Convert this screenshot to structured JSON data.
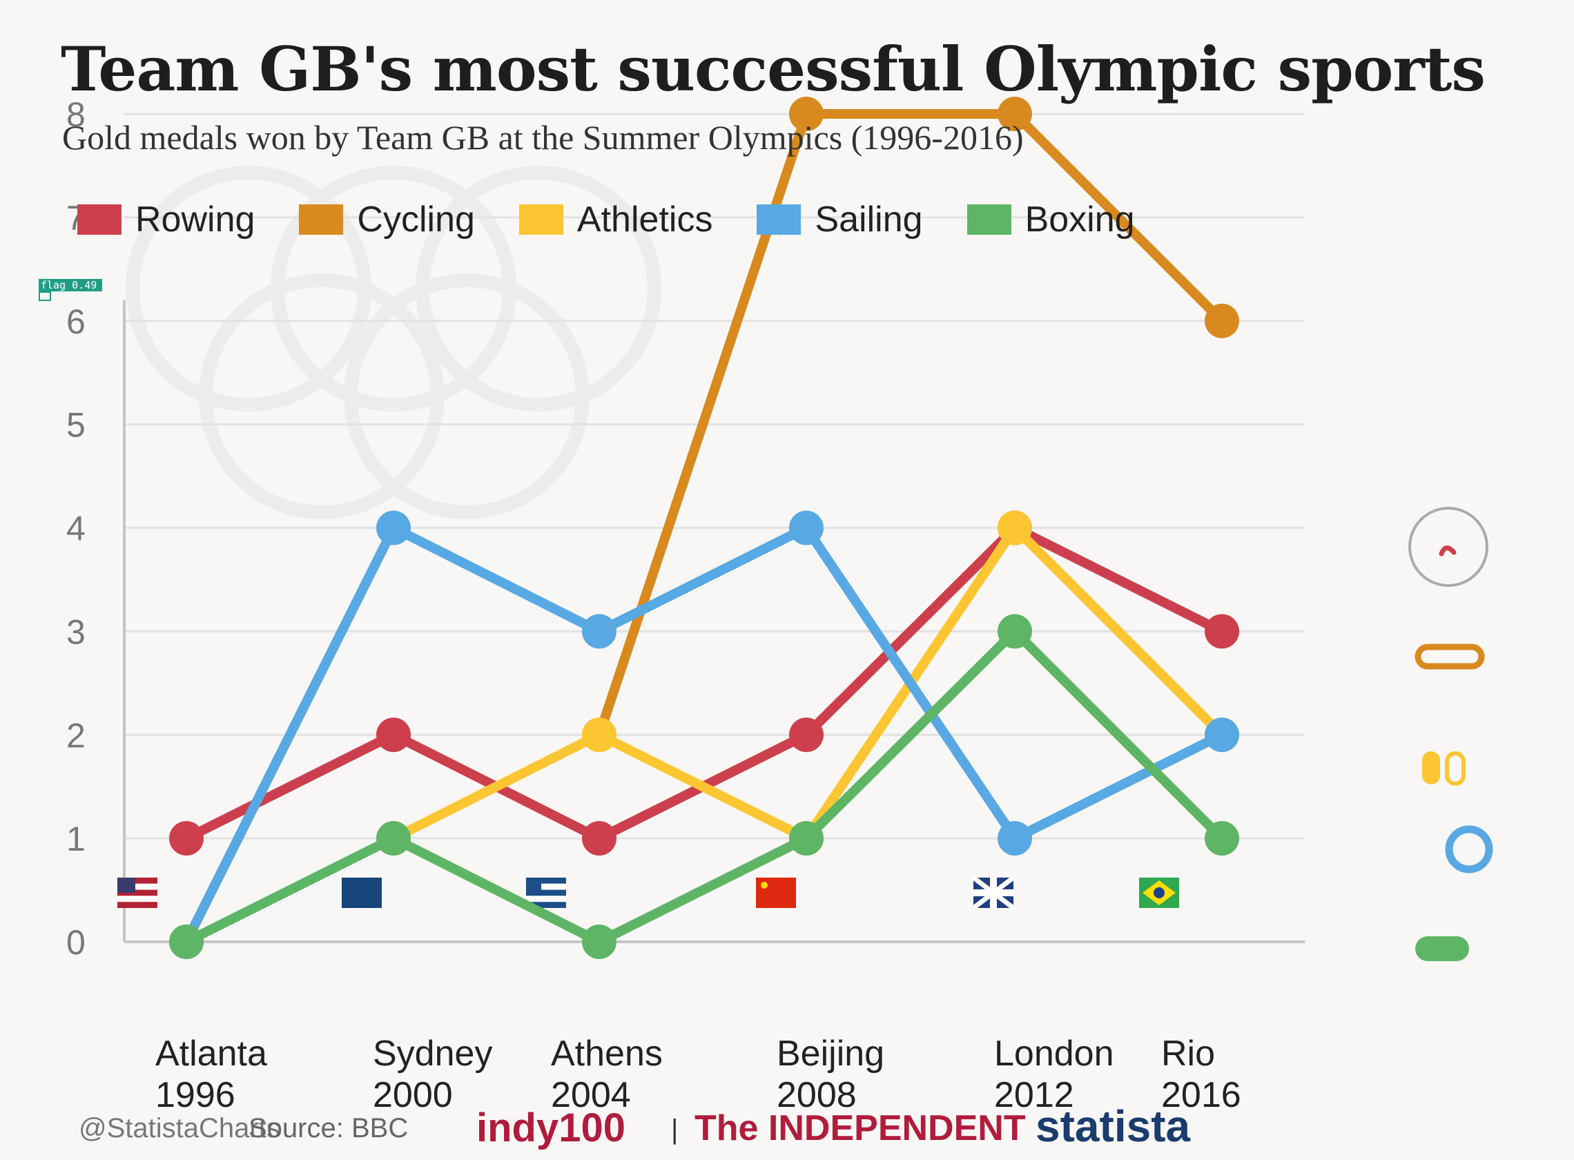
{
  "title": "Team GB's most successful Olympic sports",
  "subtitle": "Gold medals won by Team GB at the Summer Olympics (1996-2016)",
  "colors": {
    "Rowing": "#cd3f4c",
    "Cycling": "#d88a1e",
    "Athletics": "#fcc633",
    "Sailing": "#58a8e4",
    "Boxing": "#5eb566",
    "grid": "#e2e2e2",
    "axis": "#c4c4c4",
    "tick": "#777777"
  },
  "chart_data": {
    "type": "line",
    "title": "Team GB's most successful Olympic sports",
    "subtitle": "Gold medals won by Team GB at the Summer Olympics (1996-2016)",
    "x": [
      "Atlanta 1996",
      "Sydney 2000",
      "Athens 2004",
      "Beijing 2008",
      "London 2012",
      "Rio 2016"
    ],
    "x_tick_labels": [
      {
        "city": "Atlanta",
        "year": "1996"
      },
      {
        "city": "Sydney",
        "year": "2000"
      },
      {
        "city": "Athens",
        "year": "2004"
      },
      {
        "city": "Beijing",
        "year": "2008"
      },
      {
        "city": "London",
        "year": "2012"
      },
      {
        "city": "Rio",
        "year": "2016"
      }
    ],
    "y_ticks": [
      0,
      1,
      2,
      3,
      4,
      5,
      6,
      7,
      8
    ],
    "ylim": [
      0,
      8
    ],
    "grid": true,
    "legend": "top-left",
    "series": [
      {
        "name": "Rowing",
        "values": [
          1,
          2,
          1,
          2,
          4,
          3
        ]
      },
      {
        "name": "Cycling",
        "values": [
          null,
          null,
          2,
          8,
          8,
          6
        ]
      },
      {
        "name": "Athletics",
        "values": [
          null,
          1,
          2,
          1,
          4,
          2
        ]
      },
      {
        "name": "Sailing",
        "values": [
          0,
          4,
          3,
          4,
          1,
          2
        ]
      },
      {
        "name": "Boxing",
        "values": [
          0,
          1,
          0,
          1,
          3,
          1
        ]
      }
    ],
    "host_flags": [
      "flag-usa-icon",
      "flag-australia-icon",
      "flag-greece-icon",
      "flag-china-icon",
      "flag-uk-icon",
      "flag-brazil-icon"
    ],
    "sport_icons": [
      "rowing-icon",
      "cycling-icon",
      "athletics-icon",
      "sailing-icon",
      "boxing-icon"
    ]
  },
  "detection_label": "flag 0.49",
  "footer": {
    "credit": "@StatistaCharts",
    "source": "Source: BBC",
    "indy": "indy100",
    "separator": "|",
    "independent": "The INDEPENDENT",
    "statista": "statista"
  }
}
